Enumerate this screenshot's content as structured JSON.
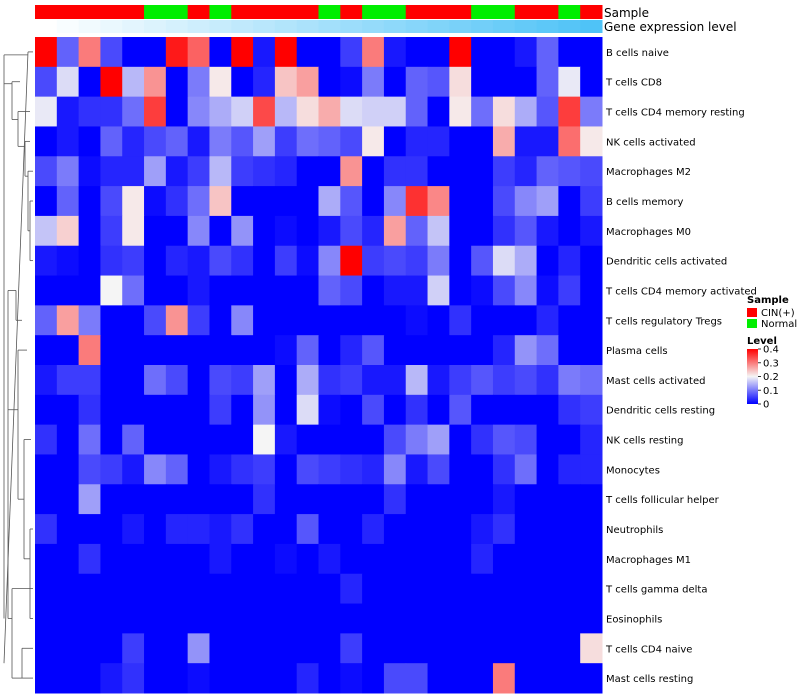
{
  "chart_data": {
    "type": "heatmap",
    "title": "",
    "annotations": [
      {
        "name": "Sample",
        "label": "Sample"
      },
      {
        "name": "Gene expression level",
        "label": "Gene expression level"
      }
    ],
    "sample_groups": [
      "CIN(+)",
      "CIN(+)",
      "CIN(+)",
      "CIN(+)",
      "CIN(+)",
      "Normal",
      "Normal",
      "CIN(+)",
      "Normal",
      "CIN(+)",
      "CIN(+)",
      "CIN(+)",
      "CIN(+)",
      "Normal",
      "CIN(+)",
      "Normal",
      "Normal",
      "CIN(+)",
      "CIN(+)",
      "CIN(+)",
      "Normal",
      "Normal",
      "CIN(+)",
      "CIN(+)",
      "Normal",
      "CIN(+)"
    ],
    "row_labels": [
      "B cells naive",
      "T cells CD8",
      "T cells CD4 memory resting",
      "NK cells activated",
      "Macrophages M2",
      "B cells memory",
      "Macrophages M0",
      "Dendritic cells activated",
      "T cells CD4 memory activated",
      "T cells regulatory  Tregs",
      "Plasma cells",
      "Mast cells activated",
      "Dendritic cells resting",
      "NK cells resting",
      "Monocytes",
      "T cells follicular helper",
      "Neutrophils",
      "Macrophages M1",
      "T cells gamma delta",
      "Eosinophils",
      "T cells CD4 naive",
      "Mast cells resting"
    ],
    "values": [
      [
        0.4,
        0.08,
        0.3,
        0.06,
        0.0,
        0.0,
        0.38,
        0.32,
        0.0,
        0.4,
        0.02,
        0.4,
        0.0,
        0.0,
        0.05,
        0.3,
        0.02,
        0.0,
        0.0,
        0.4,
        0.0,
        0.0,
        0.02,
        0.08,
        0.0,
        0.0
      ],
      [
        0.06,
        0.18,
        0.0,
        0.4,
        0.15,
        0.28,
        0.0,
        0.1,
        0.21,
        0.0,
        0.03,
        0.24,
        0.27,
        0.0,
        0.01,
        0.1,
        0.0,
        0.08,
        0.07,
        0.22,
        0.0,
        0.0,
        0.0,
        0.08,
        0.19,
        0.0
      ],
      [
        0.19,
        0.02,
        0.04,
        0.04,
        0.09,
        0.35,
        0.0,
        0.11,
        0.14,
        0.17,
        0.34,
        0.15,
        0.22,
        0.26,
        0.18,
        0.17,
        0.17,
        0.08,
        0.0,
        0.21,
        0.09,
        0.22,
        0.14,
        0.07,
        0.35,
        0.1
      ],
      [
        0.0,
        0.02,
        0.0,
        0.08,
        0.03,
        0.06,
        0.08,
        0.02,
        0.1,
        0.07,
        0.13,
        0.05,
        0.09,
        0.08,
        0.06,
        0.21,
        0.0,
        0.03,
        0.03,
        0.0,
        0.0,
        0.26,
        0.02,
        0.02,
        0.31,
        0.21
      ],
      [
        0.06,
        0.1,
        0.01,
        0.03,
        0.03,
        0.13,
        0.02,
        0.05,
        0.15,
        0.05,
        0.04,
        0.03,
        0.0,
        0.0,
        0.28,
        0.0,
        0.04,
        0.04,
        0.0,
        0.0,
        0.0,
        0.05,
        0.03,
        0.08,
        0.07,
        0.06
      ],
      [
        0.0,
        0.08,
        0.0,
        0.06,
        0.21,
        0.01,
        0.04,
        0.09,
        0.24,
        0.0,
        0.0,
        0.0,
        0.0,
        0.14,
        0.07,
        0.0,
        0.11,
        0.36,
        0.29,
        0.0,
        0.0,
        0.06,
        0.11,
        0.13,
        0.0,
        0.05
      ],
      [
        0.16,
        0.23,
        0.0,
        0.05,
        0.21,
        0.0,
        0.0,
        0.11,
        0.0,
        0.12,
        0.0,
        0.01,
        0.0,
        0.02,
        0.06,
        0.03,
        0.27,
        0.08,
        0.16,
        0.0,
        0.0,
        0.04,
        0.07,
        0.02,
        0.0,
        0.02
      ],
      [
        0.02,
        0.01,
        0.0,
        0.04,
        0.05,
        0.0,
        0.03,
        0.02,
        0.06,
        0.04,
        0.0,
        0.05,
        0.01,
        0.11,
        0.4,
        0.05,
        0.06,
        0.05,
        0.1,
        0.0,
        0.07,
        0.18,
        0.14,
        0.0,
        0.03,
        0.0
      ],
      [
        0.0,
        0.0,
        0.0,
        0.2,
        0.09,
        0.0,
        0.0,
        0.02,
        0.0,
        0.0,
        0.0,
        0.0,
        0.0,
        0.08,
        0.06,
        0.0,
        0.02,
        0.02,
        0.17,
        0.0,
        0.01,
        0.06,
        0.11,
        0.01,
        0.05,
        0.0
      ],
      [
        0.08,
        0.27,
        0.1,
        0.0,
        0.0,
        0.06,
        0.28,
        0.05,
        0.0,
        0.11,
        0.0,
        0.0,
        0.0,
        0.0,
        0.0,
        0.0,
        0.0,
        0.01,
        0.0,
        0.04,
        0.0,
        0.0,
        0.0,
        0.03,
        0.0,
        0.0
      ],
      [
        0.0,
        0.0,
        0.3,
        0.0,
        0.0,
        0.0,
        0.0,
        0.0,
        0.0,
        0.0,
        0.0,
        0.01,
        0.08,
        0.0,
        0.03,
        0.07,
        0.0,
        0.0,
        0.0,
        0.0,
        0.0,
        0.03,
        0.12,
        0.09,
        0.0,
        0.0
      ],
      [
        0.02,
        0.05,
        0.05,
        0.0,
        0.0,
        0.09,
        0.06,
        0.0,
        0.06,
        0.05,
        0.13,
        0.0,
        0.14,
        0.04,
        0.05,
        0.02,
        0.02,
        0.15,
        0.02,
        0.05,
        0.07,
        0.05,
        0.06,
        0.04,
        0.1,
        0.09
      ],
      [
        0.0,
        0.0,
        0.04,
        0.0,
        0.0,
        0.0,
        0.0,
        0.0,
        0.05,
        0.0,
        0.12,
        0.0,
        0.18,
        0.01,
        0.0,
        0.06,
        0.0,
        0.04,
        0.0,
        0.07,
        0.0,
        0.0,
        0.0,
        0.0,
        0.04,
        0.05
      ],
      [
        0.04,
        0.0,
        0.09,
        0.0,
        0.08,
        0.0,
        0.0,
        0.0,
        0.0,
        0.0,
        0.2,
        0.02,
        0.0,
        0.0,
        0.0,
        0.0,
        0.06,
        0.1,
        0.13,
        0.0,
        0.04,
        0.07,
        0.06,
        0.0,
        0.0,
        0.03
      ],
      [
        0.0,
        0.0,
        0.06,
        0.05,
        0.02,
        0.11,
        0.08,
        0.0,
        0.02,
        0.04,
        0.05,
        0.0,
        0.06,
        0.05,
        0.04,
        0.03,
        0.11,
        0.02,
        0.06,
        0.0,
        0.0,
        0.04,
        0.09,
        0.0,
        0.03,
        0.03
      ],
      [
        0.0,
        0.0,
        0.13,
        0.0,
        0.0,
        0.0,
        0.0,
        0.0,
        0.0,
        0.0,
        0.04,
        0.0,
        0.0,
        0.0,
        0.0,
        0.0,
        0.04,
        0.0,
        0.0,
        0.0,
        0.0,
        0.02,
        0.0,
        0.0,
        0.0,
        0.0
      ],
      [
        0.04,
        0.0,
        0.0,
        0.0,
        0.02,
        0.0,
        0.03,
        0.03,
        0.02,
        0.04,
        0.0,
        0.0,
        0.07,
        0.0,
        0.0,
        0.03,
        0.0,
        0.0,
        0.0,
        0.0,
        0.02,
        0.04,
        0.0,
        0.0,
        0.0,
        0.0
      ],
      [
        0.0,
        0.0,
        0.04,
        0.0,
        0.0,
        0.0,
        0.0,
        0.0,
        0.02,
        0.0,
        0.0,
        0.01,
        0.0,
        0.02,
        0.0,
        0.0,
        0.0,
        0.0,
        0.0,
        0.0,
        0.03,
        0.0,
        0.0,
        0.0,
        0.0,
        0.0
      ],
      [
        0.0,
        0.0,
        0.0,
        0.0,
        0.0,
        0.0,
        0.0,
        0.0,
        0.0,
        0.0,
        0.0,
        0.0,
        0.0,
        0.0,
        0.03,
        0.0,
        0.0,
        0.0,
        0.0,
        0.0,
        0.0,
        0.0,
        0.0,
        0.0,
        0.0,
        0.0
      ],
      [
        0.0,
        0.0,
        0.0,
        0.0,
        0.0,
        0.0,
        0.0,
        0.0,
        0.0,
        0.0,
        0.0,
        0.0,
        0.0,
        0.0,
        0.0,
        0.0,
        0.0,
        0.0,
        0.0,
        0.0,
        0.0,
        0.0,
        0.0,
        0.0,
        0.0,
        0.0
      ],
      [
        0.0,
        0.0,
        0.0,
        0.0,
        0.05,
        0.0,
        0.0,
        0.12,
        0.0,
        0.0,
        0.0,
        0.0,
        0.0,
        0.0,
        0.05,
        0.0,
        0.0,
        0.0,
        0.0,
        0.0,
        0.0,
        0.0,
        0.0,
        0.0,
        0.0,
        0.22
      ],
      [
        0.0,
        0.0,
        0.0,
        0.02,
        0.04,
        0.0,
        0.0,
        0.01,
        0.0,
        0.0,
        0.0,
        0.0,
        0.03,
        0.0,
        0.01,
        0.0,
        0.06,
        0.06,
        0.0,
        0.0,
        0.0,
        0.3,
        0.0,
        0.0,
        0.0,
        0.0
      ]
    ],
    "color_scale": {
      "stops": [
        0,
        0.2,
        0.4
      ],
      "colors": [
        "#0000ff",
        "#f5f5f5",
        "#ff0000"
      ]
    },
    "legend_sample": {
      "title": "Sample",
      "entries": [
        {
          "label": "CIN(+)",
          "color": "#ff0000"
        },
        {
          "label": "Normal",
          "color": "#00ee00"
        }
      ]
    },
    "legend_level": {
      "title": "Level",
      "ticks": [
        {
          "label": "0.4",
          "value": 0.4
        },
        {
          "label": "0.3",
          "value": 0.3
        },
        {
          "label": "0.2",
          "value": 0.2
        },
        {
          "label": "0.1",
          "value": 0.1
        },
        {
          "label": "0",
          "value": 0
        }
      ]
    },
    "expression_bar": {
      "start_color": "#ffffff",
      "end_color": "#4fc3f7"
    },
    "row_dendrogram": true
  }
}
